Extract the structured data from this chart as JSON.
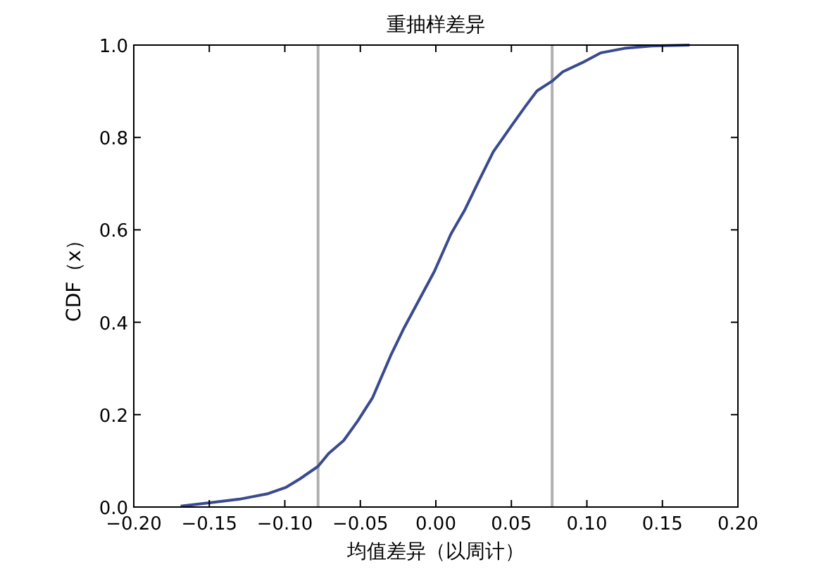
{
  "chart_data": {
    "type": "line",
    "title": "重抽样差异",
    "xlabel": "均值差异（以周计）",
    "ylabel": "CDF（x）",
    "x": [
      -0.169,
      -0.15,
      -0.13,
      -0.111,
      -0.099,
      -0.09,
      -0.078,
      -0.071,
      -0.061,
      -0.052,
      -0.042,
      -0.03,
      -0.021,
      -0.011,
      -0.001,
      0.01,
      0.019,
      0.028,
      0.038,
      0.05,
      0.059,
      0.067,
      0.077,
      0.084,
      0.097,
      0.109,
      0.125,
      0.143,
      0.168
    ],
    "series": [
      {
        "color": "#3a4a8e",
        "values": [
          0.002,
          0.009,
          0.017,
          0.029,
          0.043,
          0.061,
          0.088,
          0.116,
          0.144,
          0.185,
          0.236,
          0.327,
          0.388,
          0.449,
          0.51,
          0.591,
          0.642,
          0.703,
          0.769,
          0.825,
          0.866,
          0.901,
          0.922,
          0.942,
          0.962,
          0.983,
          0.993,
          0.998,
          1.0
        ]
      }
    ],
    "xlim": [
      -0.2,
      0.2
    ],
    "xticks": [
      {
        "value": -0.2,
        "label": "−0.20"
      },
      {
        "value": -0.15,
        "label": "−0.15"
      },
      {
        "value": -0.1,
        "label": "−0.10"
      },
      {
        "value": -0.05,
        "label": "−0.05"
      },
      {
        "value": 0,
        "label": "0.00"
      },
      {
        "value": 0.05,
        "label": "0.05"
      },
      {
        "value": 0.1,
        "label": "0.10"
      },
      {
        "value": 0.15,
        "label": "0.15"
      },
      {
        "value": 0.2,
        "label": "0.20"
      }
    ],
    "ylim": [
      0,
      1
    ],
    "yticks": [
      {
        "value": 0,
        "label": "0.0"
      },
      {
        "value": 0.2,
        "label": "0.2"
      },
      {
        "value": 0.4,
        "label": "0.4"
      },
      {
        "value": 0.6,
        "label": "0.6"
      },
      {
        "value": 0.8,
        "label": "0.8"
      },
      {
        "value": 1,
        "label": "1.0"
      }
    ],
    "ref_lines": [
      {
        "axis": "x",
        "value": -0.078,
        "color": "#b0b0b0"
      },
      {
        "axis": "x",
        "value": 0.077,
        "color": "#b0b0b0"
      }
    ],
    "grid": false
  }
}
